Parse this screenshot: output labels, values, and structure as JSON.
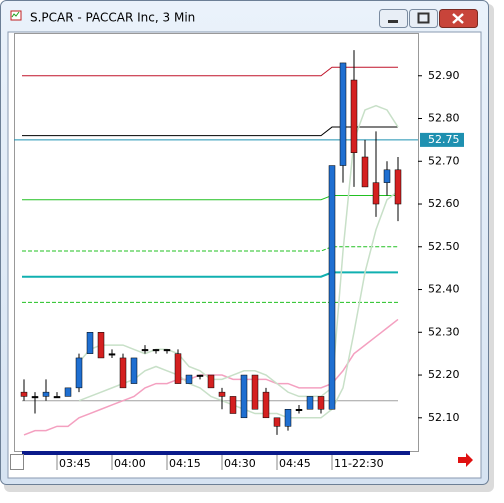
{
  "window_title": "S.PCAR - PACCAR Inc, 3 Min",
  "chart_data": {
    "type": "candlestick",
    "ylim": [
      52.02,
      53.0
    ],
    "yticks": [
      {
        "value": 52.1,
        "label": "52.10"
      },
      {
        "value": 52.2,
        "label": "52.20"
      },
      {
        "value": 52.3,
        "label": "52.30"
      },
      {
        "value": 52.4,
        "label": "52.40"
      },
      {
        "value": 52.5,
        "label": "52.50"
      },
      {
        "value": 52.6,
        "label": "52.60"
      },
      {
        "value": 52.7,
        "label": "52.70"
      },
      {
        "value": 52.8,
        "label": "52.80"
      },
      {
        "value": 52.9,
        "label": "52.90"
      }
    ],
    "xticks": [
      {
        "value": 3,
        "label": "03:45"
      },
      {
        "value": 8,
        "label": "04:00"
      },
      {
        "value": 13,
        "label": "04:15"
      },
      {
        "value": 18,
        "label": "04:30"
      },
      {
        "value": 23,
        "label": "04:45"
      },
      {
        "value": 28,
        "label": "11-22:30"
      }
    ],
    "price_marker": {
      "value": 52.75,
      "label": "52.75",
      "color": "#1e90b0"
    },
    "up_color": "#1f6fd1",
    "down_color": "#d42020",
    "flat_color": "#000000",
    "open": [
      52.16,
      52.15,
      52.15,
      52.15,
      52.15,
      52.17,
      52.25,
      52.3,
      52.25,
      52.24,
      52.18,
      52.26,
      52.26,
      52.26,
      52.25,
      52.18,
      52.2,
      52.2,
      52.16,
      52.15,
      52.1,
      52.2,
      52.16,
      52.1,
      52.08,
      52.12,
      52.12,
      52.15,
      52.12,
      52.69,
      52.89,
      52.71,
      52.65,
      52.65,
      52.68
    ],
    "high": [
      52.19,
      52.16,
      52.19,
      52.16,
      52.17,
      52.25,
      52.3,
      52.3,
      52.26,
      52.25,
      52.24,
      52.27,
      52.26,
      52.26,
      52.26,
      52.2,
      52.2,
      52.2,
      52.17,
      52.15,
      52.2,
      52.2,
      52.17,
      52.1,
      52.12,
      52.13,
      52.15,
      52.15,
      52.69,
      52.93,
      52.96,
      52.75,
      52.77,
      52.7,
      52.71
    ],
    "low": [
      52.14,
      52.11,
      52.14,
      52.15,
      52.15,
      52.16,
      52.25,
      52.24,
      52.24,
      52.17,
      52.18,
      52.25,
      52.25,
      52.25,
      52.18,
      52.18,
      52.19,
      52.17,
      52.12,
      52.11,
      52.1,
      52.12,
      52.1,
      52.06,
      52.07,
      52.11,
      52.12,
      52.11,
      52.12,
      52.65,
      52.64,
      52.64,
      52.57,
      52.62,
      52.56
    ],
    "close": [
      52.15,
      52.15,
      52.16,
      52.15,
      52.17,
      52.24,
      52.3,
      52.24,
      52.25,
      52.17,
      52.24,
      52.26,
      52.26,
      52.26,
      52.18,
      52.2,
      52.2,
      52.17,
      52.15,
      52.11,
      52.2,
      52.12,
      52.1,
      52.08,
      52.12,
      52.12,
      52.15,
      52.12,
      52.69,
      52.93,
      52.72,
      52.64,
      52.6,
      52.68,
      52.6
    ],
    "curves": [
      {
        "color": "#f4a0c0",
        "values": [
          52.06,
          52.07,
          52.07,
          52.08,
          52.08,
          52.1,
          52.11,
          52.12,
          52.13,
          52.14,
          52.15,
          52.17,
          52.18,
          52.18,
          52.19,
          52.19,
          52.2,
          52.2,
          52.2,
          52.19,
          52.19,
          52.19,
          52.19,
          52.18,
          52.18,
          52.17,
          52.17,
          52.17,
          52.18,
          52.21,
          52.25,
          52.27,
          52.29,
          52.31,
          52.33
        ]
      },
      {
        "color": "#c8e0c8",
        "values": [
          null,
          null,
          null,
          null,
          null,
          52.23,
          52.26,
          52.27,
          52.27,
          52.27,
          52.26,
          52.25,
          52.26,
          52.26,
          52.25,
          52.22,
          52.21,
          52.19,
          52.19,
          52.2,
          52.21,
          52.21,
          52.2,
          52.18,
          52.16,
          52.15,
          52.15,
          52.15,
          52.17,
          52.49,
          52.75,
          52.82,
          52.83,
          52.82,
          52.78
        ]
      },
      {
        "color": "#c8e0c8",
        "values": [
          null,
          null,
          null,
          null,
          null,
          52.14,
          52.15,
          52.16,
          52.17,
          52.18,
          52.19,
          52.21,
          52.22,
          52.21,
          52.2,
          52.18,
          52.17,
          52.15,
          52.14,
          52.13,
          52.12,
          52.11,
          52.11,
          52.11,
          52.1,
          52.1,
          52.1,
          52.1,
          52.12,
          52.17,
          52.3,
          52.44,
          52.54,
          52.61,
          52.63
        ]
      }
    ],
    "levels": [
      {
        "color": "#c0142a",
        "values": [
          52.9,
          52.92
        ],
        "step_at": 28
      },
      {
        "color": "#000000",
        "values": [
          52.76,
          52.78
        ],
        "step_at": 28
      },
      {
        "color": "#22c022",
        "values": [
          52.61,
          52.62
        ],
        "step_at": 28
      },
      {
        "color": "#22c022",
        "values": [
          52.49,
          52.5
        ],
        "step_at": 28,
        "dashed": true
      },
      {
        "color": "#10b0b0",
        "values": [
          52.43,
          52.44
        ],
        "step_at": 28,
        "width": 2
      },
      {
        "color": "#22c022",
        "values": [
          52.37,
          52.37
        ],
        "step_at": 28,
        "dashed": true
      },
      {
        "color": "#a0a0a0",
        "values": [
          52.14,
          52.14
        ],
        "step_at": 28
      }
    ]
  }
}
